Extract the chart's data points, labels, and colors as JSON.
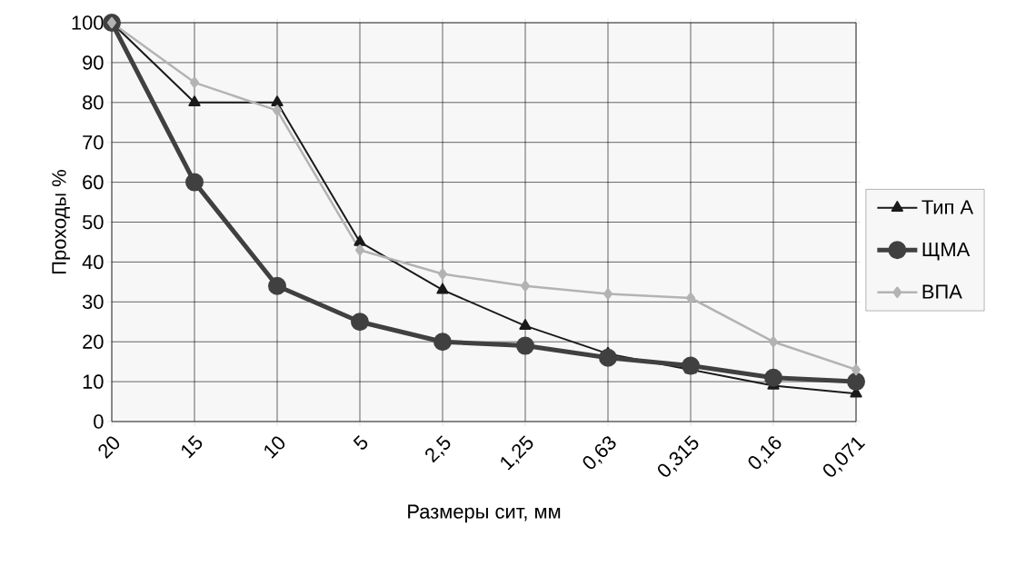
{
  "chart_data": {
    "type": "line",
    "xlabel": "Размеры сит, мм",
    "ylabel": "Проходы %",
    "categories": [
      "20",
      "15",
      "10",
      "5",
      "2,5",
      "1,25",
      "0,63",
      "0,315",
      "0,16",
      "0,071"
    ],
    "series": [
      {
        "name": "Тип А",
        "color": "#1a1a1a",
        "marker": "triangle",
        "values": [
          100,
          80,
          80,
          45,
          33,
          24,
          17,
          13,
          9,
          7
        ]
      },
      {
        "name": "ЩМА",
        "color": "#404040",
        "marker": "circle",
        "values": [
          100,
          60,
          34,
          25,
          20,
          19,
          16,
          14,
          11,
          10
        ]
      },
      {
        "name": "ВПА",
        "color": "#b3b3b3",
        "marker": "diamond",
        "values": [
          100,
          85,
          78,
          43,
          37,
          34,
          32,
          31,
          20,
          13
        ]
      }
    ],
    "ylim": [
      0,
      100
    ],
    "yticks": [
      0,
      10,
      20,
      30,
      40,
      50,
      60,
      70,
      80,
      90,
      100
    ],
    "grid": true,
    "legend": "right"
  }
}
